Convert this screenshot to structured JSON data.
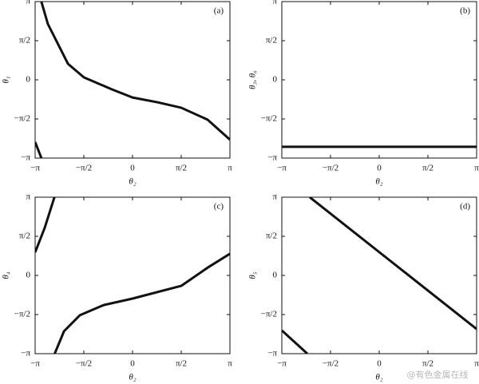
{
  "chart_data": [
    {
      "type": "line",
      "panel_label": "(a)",
      "xlabel": "θ₂",
      "ylabel": "θ₁",
      "x": [
        -3.14,
        -2.94,
        -2.94,
        -2.94,
        -2.73,
        -2.08,
        -1.57,
        -0.67,
        0,
        0.8,
        1.57,
        2.42,
        3.14
      ],
      "series": [
        {
          "color": "#111111",
          "values": [
            -2.5,
            -3.14,
            null,
            3.14,
            2.24,
            0.64,
            0.1,
            -0.38,
            -0.71,
            -0.9,
            -1.12,
            -1.6,
            -2.4
          ]
        }
      ],
      "xlim": [
        -3.1416,
        3.1416
      ],
      "ylim": [
        -3.1416,
        3.1416
      ],
      "xticks": [
        {
          "value": -3.1416,
          "label": "−π"
        },
        {
          "value": -1.5708,
          "label": "−π/2"
        },
        0,
        {
          "value": 1.5708,
          "label": "π/2"
        },
        {
          "value": 3.1416,
          "label": "π"
        }
      ],
      "yticks": [
        {
          "value": -3.1416,
          "label": "−π"
        },
        {
          "value": -1.5708,
          "label": "−π/2"
        },
        0,
        {
          "value": 1.5708,
          "label": "π/2"
        },
        {
          "value": 3.1416,
          "label": "π"
        }
      ]
    },
    {
      "type": "line",
      "panel_label": "(b)",
      "xlabel": "θ₂",
      "ylabel": "θ₃, θ₆",
      "x": [
        -3.14,
        3.14
      ],
      "series": [
        {
          "color": "#111111",
          "values": [
            -2.69,
            -2.69
          ]
        }
      ],
      "xlim": [
        -3.1416,
        3.1416
      ],
      "ylim": [
        -3.1416,
        3.1416
      ],
      "xticks": [
        {
          "value": -3.1416,
          "label": "−π"
        },
        {
          "value": -1.5708,
          "label": "−π/2"
        },
        0,
        {
          "value": 1.5708,
          "label": "π/2"
        },
        {
          "value": 3.1416,
          "label": "π"
        }
      ],
      "yticks": [
        {
          "value": -3.1416,
          "label": "−π"
        },
        {
          "value": -1.5708,
          "label": "−π/2"
        },
        0,
        {
          "value": 1.5708,
          "label": "π/2"
        },
        {
          "value": 3.1416,
          "label": "π"
        }
      ]
    },
    {
      "type": "line",
      "panel_label": "(c)",
      "xlabel": "θ₂",
      "ylabel": "θ₄",
      "x": [
        -3.14,
        -2.83,
        -2.52,
        -2.52,
        -2.51,
        -2.21,
        -1.7,
        -0.93,
        0,
        1.57,
        2.42,
        3.14
      ],
      "series": [
        {
          "color": "#111111",
          "values": [
            0.93,
            1.92,
            3.14,
            null,
            -3.14,
            -2.24,
            -1.6,
            -1.19,
            -0.93,
            -0.42,
            0.31,
            0.87
          ]
        }
      ],
      "xlim": [
        -3.1416,
        3.1416
      ],
      "ylim": [
        -3.1416,
        3.1416
      ],
      "xticks": [
        {
          "value": -3.1416,
          "label": "−π"
        },
        {
          "value": -1.5708,
          "label": "−π/2"
        },
        0,
        {
          "value": 1.5708,
          "label": "π/2"
        },
        {
          "value": 3.1416,
          "label": "π"
        }
      ],
      "yticks": [
        {
          "value": -3.1416,
          "label": "−π"
        },
        {
          "value": -1.5708,
          "label": "−π/2"
        },
        0,
        {
          "value": 1.5708,
          "label": "π/2"
        },
        {
          "value": 3.1416,
          "label": "π"
        }
      ]
    },
    {
      "type": "line",
      "panel_label": "(d)",
      "xlabel": "θ₂",
      "ylabel": "θ₅",
      "x": [
        -3.14,
        -2.32,
        -2.32,
        -2.24,
        3.14
      ],
      "series": [
        {
          "color": "#111111",
          "values": [
            -2.21,
            -3.14,
            null,
            3.14,
            -2.15
          ]
        }
      ],
      "xlim": [
        -3.1416,
        3.1416
      ],
      "ylim": [
        -3.1416,
        3.1416
      ],
      "xticks": [
        {
          "value": -3.1416,
          "label": "−π"
        },
        {
          "value": -1.5708,
          "label": "−π/2"
        },
        0,
        {
          "value": 1.5708,
          "label": "π/2"
        },
        {
          "value": 3.1416,
          "label": "π"
        }
      ],
      "yticks": [
        {
          "value": -3.1416,
          "label": "−π"
        },
        {
          "value": -1.5708,
          "label": "−π/2"
        },
        0,
        {
          "value": 1.5708,
          "label": "π/2"
        },
        {
          "value": 3.1416,
          "label": "π"
        }
      ]
    }
  ],
  "watermark": "@有色金属在线"
}
